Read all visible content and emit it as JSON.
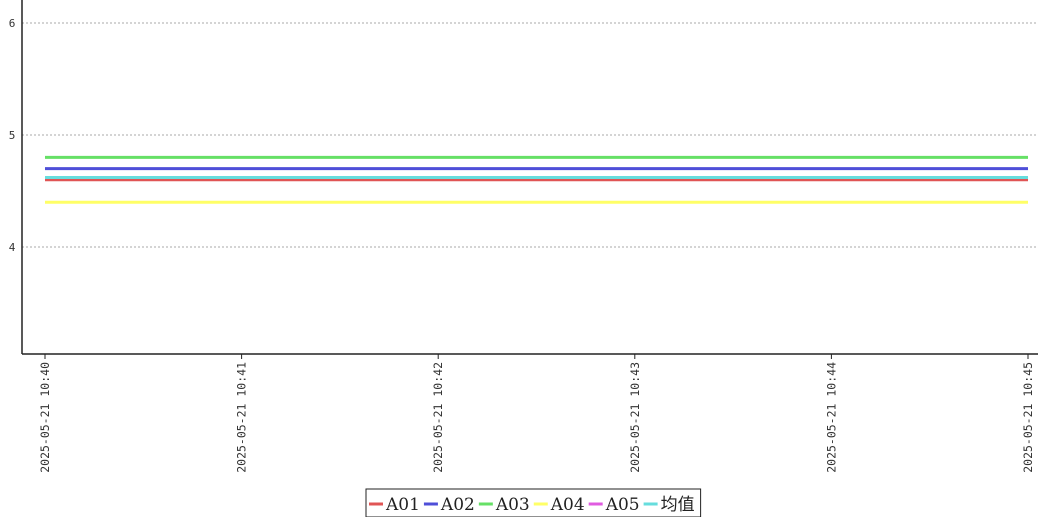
{
  "chart_data": {
    "type": "line",
    "title": "",
    "xlabel": "",
    "ylabel": "",
    "x": [
      "2025-05-21 10:40",
      "2025-05-21 10:41",
      "2025-05-21 10:42",
      "2025-05-21 10:43",
      "2025-05-21 10:44",
      "2025-05-21 10:45"
    ],
    "ylim": [
      3.1,
      6.2
    ],
    "yticks": [
      4,
      5,
      6
    ],
    "ytick_labels": [
      "4",
      "5",
      "6"
    ],
    "grid": "horizontal dashed",
    "legend_position": "bottom-center",
    "series": [
      {
        "name": "A01",
        "color": "#e05555",
        "values": [
          4.6,
          4.6,
          4.6,
          4.6,
          4.6,
          4.6
        ]
      },
      {
        "name": "A02",
        "color": "#4f4fd8",
        "values": [
          4.7,
          4.7,
          4.7,
          4.7,
          4.7,
          4.7
        ]
      },
      {
        "name": "A03",
        "color": "#66e066",
        "values": [
          4.8,
          4.8,
          4.8,
          4.8,
          4.8,
          4.8
        ]
      },
      {
        "name": "A04",
        "color": "#ffff66",
        "values": [
          4.4,
          4.4,
          4.4,
          4.4,
          4.4,
          4.4
        ]
      },
      {
        "name": "A05",
        "color": "#e05ce0",
        "values": [
          4.62,
          4.62,
          4.62,
          4.62,
          4.62,
          4.62
        ]
      },
      {
        "name": "均值",
        "color": "#66dddd",
        "values": [
          4.62,
          4.62,
          4.62,
          4.62,
          4.62,
          4.62
        ]
      }
    ]
  }
}
